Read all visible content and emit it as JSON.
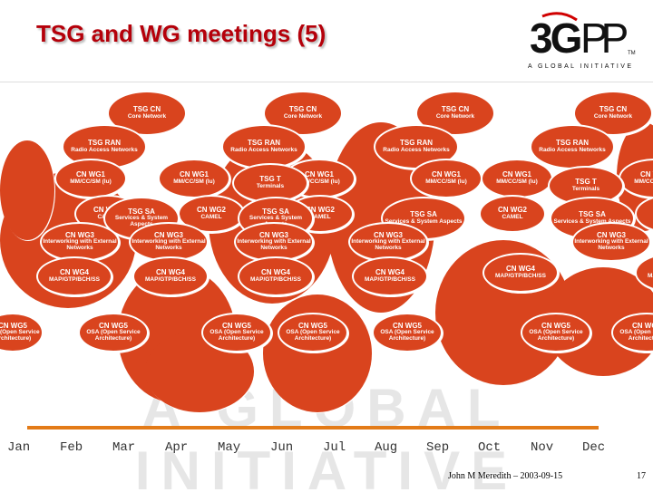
{
  "slide": {
    "title": "TSG and WG meetings (5)",
    "logo_text": "3GPP",
    "logo_tagline": "A GLOBAL INITIATIVE",
    "watermark": "A GLOBAL INITIATIVE",
    "footer": "John M Meredith – 2003-09-15",
    "page_number": "17",
    "accent_color": "#d9441e",
    "title_color": "#b5000a",
    "axis_color": "#e37b18"
  },
  "months": [
    "Jan",
    "Feb",
    "Mar",
    "Apr",
    "May",
    "Jun",
    "Jul",
    "Aug",
    "Sep",
    "Oct",
    "Nov",
    "Dec"
  ],
  "group_labels": {
    "cn": {
      "name": "TSG CN",
      "sub": "Core Network"
    },
    "ran": {
      "name": "TSG RAN",
      "sub": "Radio Access Networks"
    },
    "wg1": {
      "name": "CN WG1",
      "sub": "MM/CC/SM (lu)"
    },
    "wg2": {
      "name": "CN WG2",
      "sub": "CAMEL"
    },
    "wg3": {
      "name": "CN WG3",
      "sub": "Interworking with External Networks"
    },
    "wg4": {
      "name": "CN WG4",
      "sub": "MAP/GTP/BCH/SS"
    },
    "wg5": {
      "name": "CN WG5",
      "sub": "OSA (Open Service Architecture)"
    },
    "sa": {
      "name": "TSG SA",
      "sub": "Services & System Aspects"
    },
    "t": {
      "name": "TSG T",
      "sub": "Terminals"
    }
  }
}
